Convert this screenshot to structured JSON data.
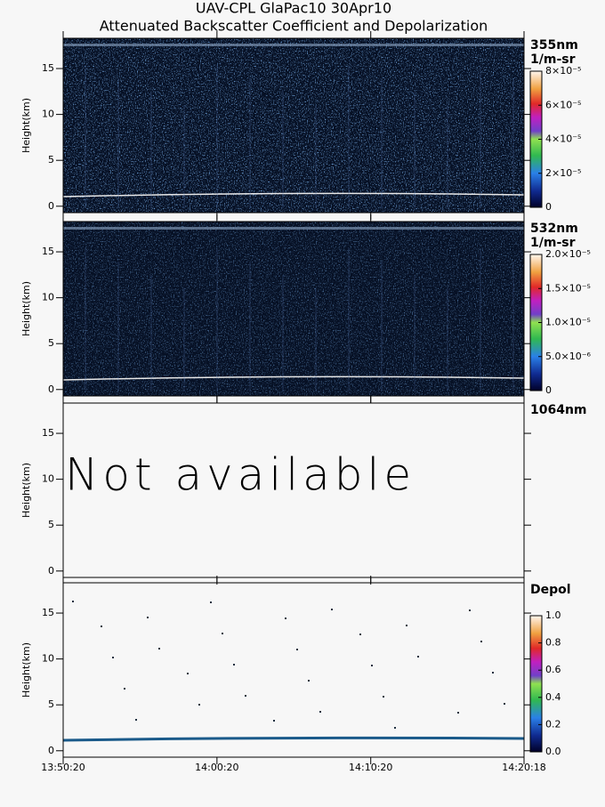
{
  "chart_data": {
    "title": "UAV-CPL GlaPac10 30Apr10",
    "subtitle": "Attenuated Backscatter Coefficient and Depolarization",
    "xlim": [
      0,
      1798
    ],
    "xticks": [
      {
        "value": 0,
        "label": "13:50:20"
      },
      {
        "value": 600,
        "label": "14:00:20"
      },
      {
        "value": 1200,
        "label": "14:10:20"
      },
      {
        "value": 1798,
        "label": "14:20:18"
      }
    ],
    "panels": [
      {
        "type": "heatmap",
        "label": "355nm",
        "unit": "1/m-sr",
        "ylabel": "Height(km)",
        "ylim": [
          -0.7,
          18.3
        ],
        "yticks": [
          0,
          5,
          10,
          15
        ],
        "colorbar": {
          "lim": [
            0,
            8e-05
          ],
          "ticks": [
            0,
            {
              "value": 2e-05,
              "label": "2×10⁻⁵"
            },
            {
              "value": 4e-05,
              "label": "4×10⁻⁵"
            },
            {
              "value": 6e-05,
              "label": "6×10⁻⁵"
            },
            {
              "value": 8e-05,
              "label": "8×10⁻⁵"
            }
          ]
        }
      },
      {
        "type": "heatmap",
        "label": "532nm",
        "unit": "1/m-sr",
        "ylabel": "Height(km)",
        "ylim": [
          -0.7,
          18.3
        ],
        "yticks": [
          0,
          5,
          10,
          15
        ],
        "colorbar": {
          "lim": [
            0,
            2e-05
          ],
          "ticks": [
            0,
            {
              "value": 5e-06,
              "label": "5.0×10⁻⁶"
            },
            {
              "value": 1e-05,
              "label": "1.0×10⁻⁵"
            },
            {
              "value": 1.5e-05,
              "label": "1.5×10⁻⁵"
            },
            {
              "value": 2e-05,
              "label": "2.0×10⁻⁵"
            }
          ]
        }
      },
      {
        "type": "empty",
        "label": "1064nm",
        "ylabel": "Height(km)",
        "ylim": [
          -0.7,
          18.3
        ],
        "yticks": [
          0,
          5,
          10,
          15
        ],
        "annotation": "Not available"
      },
      {
        "type": "depol",
        "label": "Depol",
        "ylabel": "Height(km)",
        "ylim": [
          -0.7,
          18.3
        ],
        "yticks": [
          0,
          5,
          10,
          15
        ],
        "colorbar": {
          "lim": [
            0,
            1
          ],
          "ticks": [
            {
              "value": 0,
              "label": "0.0"
            },
            0.2,
            0.4,
            0.6,
            0.8,
            {
              "value": 1,
              "label": "1.0"
            }
          ]
        }
      }
    ]
  }
}
